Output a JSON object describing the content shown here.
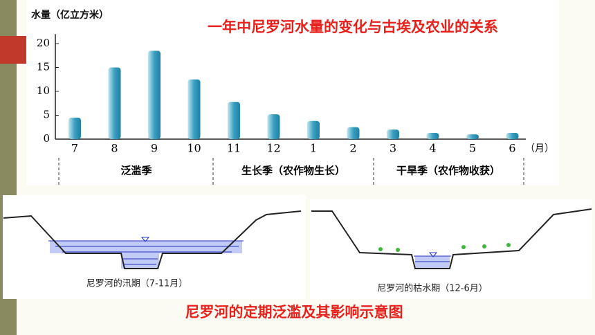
{
  "chart_data": {
    "type": "bar",
    "title": "一年中尼罗河水量的变化与古埃及农业的关系",
    "ylabel": "水量（亿立方米）",
    "xlabel": "（月）",
    "categories": [
      "7",
      "8",
      "9",
      "10",
      "11",
      "12",
      "1",
      "2",
      "3",
      "4",
      "5",
      "6"
    ],
    "values": [
      4.5,
      15,
      18.5,
      12.5,
      7.8,
      5.2,
      3.8,
      2.5,
      2,
      1.3,
      1,
      1.3
    ],
    "color": "#3a9fc0",
    "ylim": [
      0,
      22
    ],
    "yticks": [
      0,
      5,
      10,
      15,
      20
    ],
    "grid": false,
    "annotations": [
      "泛滥季",
      "生长季（农作物生长）",
      "干旱季（农作物收获）"
    ]
  },
  "diagrams": {
    "flood_caption": "尼罗河的汛期（7-11月）",
    "dry_caption": "尼罗河的枯水期（12-6月）",
    "title": "尼罗河的定期泛滥及其影响示意图"
  }
}
